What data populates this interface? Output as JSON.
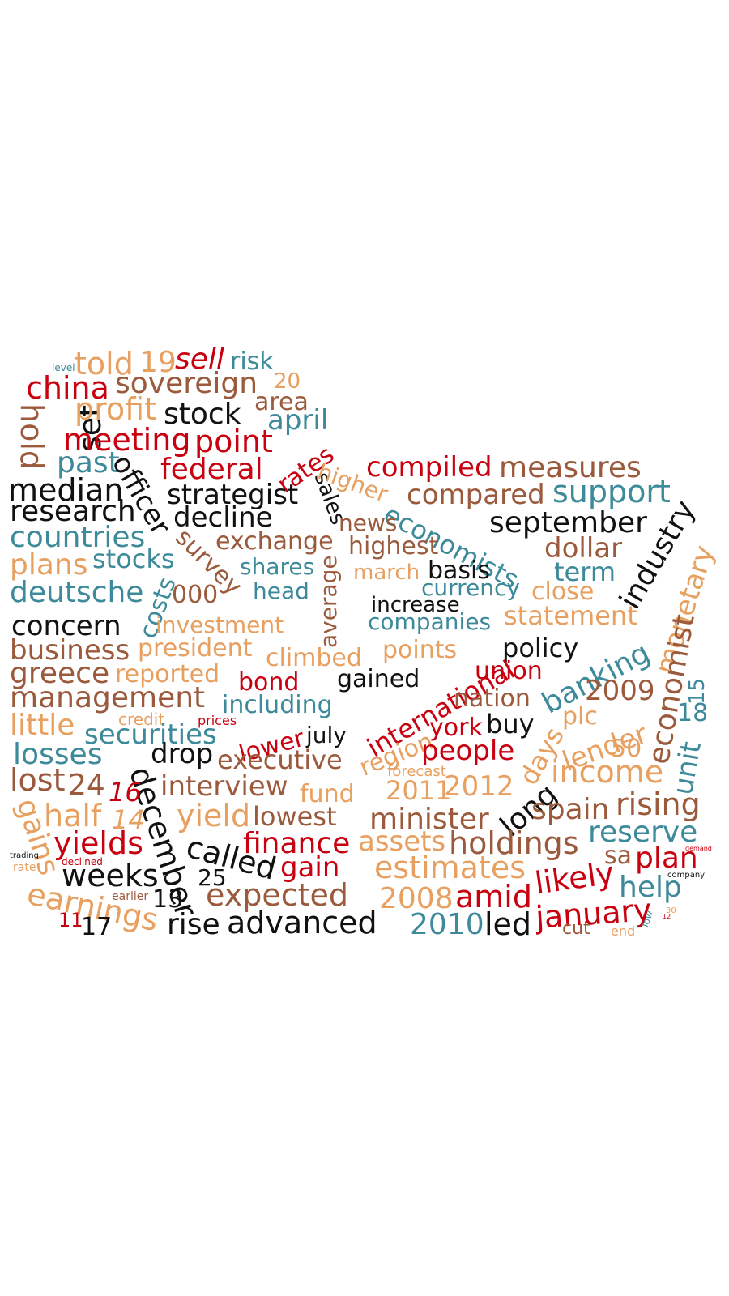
{
  "colors": {
    "red": "#c8000f",
    "black": "#111111",
    "brown": "#9b5a3c",
    "orange": "#e8a060",
    "teal": "#3d8a9a"
  },
  "words": [
    {
      "text": "told",
      "color": "orange"
    },
    {
      "text": "19",
      "color": "orange"
    },
    {
      "text": "sell",
      "color": "red"
    },
    {
      "text": "risk",
      "color": "teal"
    },
    {
      "text": "level",
      "color": "teal"
    },
    {
      "text": "china",
      "color": "red"
    },
    {
      "text": "sovereign",
      "color": "brown"
    },
    {
      "text": "20",
      "color": "orange"
    },
    {
      "text": "hold",
      "color": "brown"
    },
    {
      "text": "set",
      "color": "black"
    },
    {
      "text": "profit",
      "color": "orange"
    },
    {
      "text": "stock",
      "color": "black"
    },
    {
      "text": "area",
      "color": "brown"
    },
    {
      "text": "april",
      "color": "teal"
    },
    {
      "text": "meeting",
      "color": "red"
    },
    {
      "text": "point",
      "color": "red"
    },
    {
      "text": "past",
      "color": "teal"
    },
    {
      "text": "officer",
      "color": "black"
    },
    {
      "text": "federal",
      "color": "red"
    },
    {
      "text": "rates",
      "color": "red"
    },
    {
      "text": "sales",
      "color": "black"
    },
    {
      "text": "higher",
      "color": "orange"
    },
    {
      "text": "compiled",
      "color": "red"
    },
    {
      "text": "measures",
      "color": "brown"
    },
    {
      "text": "median",
      "color": "black"
    },
    {
      "text": "strategist",
      "color": "black"
    },
    {
      "text": "compared",
      "color": "brown"
    },
    {
      "text": "support",
      "color": "teal"
    },
    {
      "text": "research",
      "color": "black"
    },
    {
      "text": "decline",
      "color": "black"
    },
    {
      "text": "economists",
      "color": "teal"
    },
    {
      "text": "news",
      "color": "brown"
    },
    {
      "text": "september",
      "color": "black"
    },
    {
      "text": "industry",
      "color": "black"
    },
    {
      "text": "countries",
      "color": "teal"
    },
    {
      "text": "survey",
      "color": "brown"
    },
    {
      "text": "exchange",
      "color": "brown"
    },
    {
      "text": "highest",
      "color": "brown"
    },
    {
      "text": "dollar",
      "color": "brown"
    },
    {
      "text": "monetary",
      "color": "orange"
    },
    {
      "text": "plans",
      "color": "orange"
    },
    {
      "text": "stocks",
      "color": "teal"
    },
    {
      "text": "shares",
      "color": "teal"
    },
    {
      "text": "average",
      "color": "brown"
    },
    {
      "text": "march",
      "color": "orange"
    },
    {
      "text": "basis",
      "color": "black"
    },
    {
      "text": "term",
      "color": "teal"
    },
    {
      "text": "deutsche",
      "color": "teal"
    },
    {
      "text": "costs",
      "color": "teal"
    },
    {
      "text": "000",
      "color": "brown"
    },
    {
      "text": "head",
      "color": "teal"
    },
    {
      "text": "currency",
      "color": "teal"
    },
    {
      "text": "close",
      "color": "orange"
    },
    {
      "text": "increase",
      "color": "black"
    },
    {
      "text": "economist",
      "color": "brown"
    },
    {
      "text": "statement",
      "color": "orange"
    },
    {
      "text": "companies",
      "color": "teal"
    },
    {
      "text": "concern",
      "color": "black"
    },
    {
      "text": "investment",
      "color": "orange"
    },
    {
      "text": "business",
      "color": "brown"
    },
    {
      "text": "president",
      "color": "orange"
    },
    {
      "text": "climbed",
      "color": "orange"
    },
    {
      "text": "points",
      "color": "orange"
    },
    {
      "text": "policy",
      "color": "black"
    },
    {
      "text": "banking",
      "color": "teal"
    },
    {
      "text": "greece",
      "color": "brown"
    },
    {
      "text": "reported",
      "color": "orange"
    },
    {
      "text": "bond",
      "color": "red"
    },
    {
      "text": "gained",
      "color": "black"
    },
    {
      "text": "international",
      "color": "red"
    },
    {
      "text": "union",
      "color": "red"
    },
    {
      "text": "2009",
      "color": "brown"
    },
    {
      "text": "15",
      "color": "teal"
    },
    {
      "text": "management",
      "color": "brown"
    },
    {
      "text": "including",
      "color": "teal"
    },
    {
      "text": "nation",
      "color": "brown"
    },
    {
      "text": "little",
      "color": "orange"
    },
    {
      "text": "credit",
      "color": "orange"
    },
    {
      "text": "prices",
      "color": "red"
    },
    {
      "text": "plc",
      "color": "orange"
    },
    {
      "text": "18",
      "color": "teal"
    },
    {
      "text": "securities",
      "color": "teal"
    },
    {
      "text": "lower",
      "color": "red"
    },
    {
      "text": "july",
      "color": "black"
    },
    {
      "text": "region",
      "color": "orange"
    },
    {
      "text": "york",
      "color": "red"
    },
    {
      "text": "buy",
      "color": "black"
    },
    {
      "text": "lender",
      "color": "orange"
    },
    {
      "text": "days",
      "color": "orange"
    },
    {
      "text": "unit",
      "color": "teal"
    },
    {
      "text": "losses",
      "color": "teal"
    },
    {
      "text": "drop",
      "color": "black"
    },
    {
      "text": "executive",
      "color": "brown"
    },
    {
      "text": "people",
      "color": "red"
    },
    {
      "text": "50",
      "color": "orange"
    },
    {
      "text": "lost",
      "color": "brown"
    },
    {
      "text": "december",
      "color": "black"
    },
    {
      "text": "forecast",
      "color": "orange"
    },
    {
      "text": "income",
      "color": "orange"
    },
    {
      "text": "24",
      "color": "brown"
    },
    {
      "text": "16",
      "color": "red"
    },
    {
      "text": "interview",
      "color": "brown"
    },
    {
      "text": "fund",
      "color": "orange"
    },
    {
      "text": "2011",
      "color": "orange"
    },
    {
      "text": "2012",
      "color": "orange"
    },
    {
      "text": "long",
      "color": "black"
    },
    {
      "text": "gains",
      "color": "orange"
    },
    {
      "text": "half",
      "color": "orange"
    },
    {
      "text": "14",
      "color": "orange"
    },
    {
      "text": "yield",
      "color": "orange"
    },
    {
      "text": "lowest",
      "color": "brown"
    },
    {
      "text": "minister",
      "color": "brown"
    },
    {
      "text": "spain",
      "color": "brown"
    },
    {
      "text": "rising",
      "color": "brown"
    },
    {
      "text": "yields",
      "color": "red"
    },
    {
      "text": "called",
      "color": "black"
    },
    {
      "text": "finance",
      "color": "red"
    },
    {
      "text": "assets",
      "color": "orange"
    },
    {
      "text": "holdings",
      "color": "brown"
    },
    {
      "text": "reserve",
      "color": "teal"
    },
    {
      "text": "trading",
      "color": "black"
    },
    {
      "text": "declined",
      "color": "red"
    },
    {
      "text": "sa",
      "color": "brown"
    },
    {
      "text": "plan",
      "color": "red"
    },
    {
      "text": "demand",
      "color": "red"
    },
    {
      "text": "company",
      "color": "black"
    },
    {
      "text": "rate",
      "color": "orange"
    },
    {
      "text": "weeks",
      "color": "black"
    },
    {
      "text": "25",
      "color": "black"
    },
    {
      "text": "gain",
      "color": "red"
    },
    {
      "text": "estimates",
      "color": "orange"
    },
    {
      "text": "likely",
      "color": "red"
    },
    {
      "text": "earnings",
      "color": "orange"
    },
    {
      "text": "earlier",
      "color": "brown"
    },
    {
      "text": "13",
      "color": "black"
    },
    {
      "text": "expected",
      "color": "brown"
    },
    {
      "text": "2008",
      "color": "orange"
    },
    {
      "text": "amid",
      "color": "red"
    },
    {
      "text": "help",
      "color": "teal"
    },
    {
      "text": "11",
      "color": "red"
    },
    {
      "text": "17",
      "color": "black"
    },
    {
      "text": "rise",
      "color": "black"
    },
    {
      "text": "advanced",
      "color": "black"
    },
    {
      "text": "2010",
      "color": "teal"
    },
    {
      "text": "led",
      "color": "black"
    },
    {
      "text": "january",
      "color": "red"
    },
    {
      "text": "cut",
      "color": "brown"
    },
    {
      "text": "end",
      "color": "orange"
    },
    {
      "text": "low",
      "color": "teal"
    },
    {
      "text": "30",
      "color": "orange"
    },
    {
      "text": "12",
      "color": "red"
    }
  ]
}
